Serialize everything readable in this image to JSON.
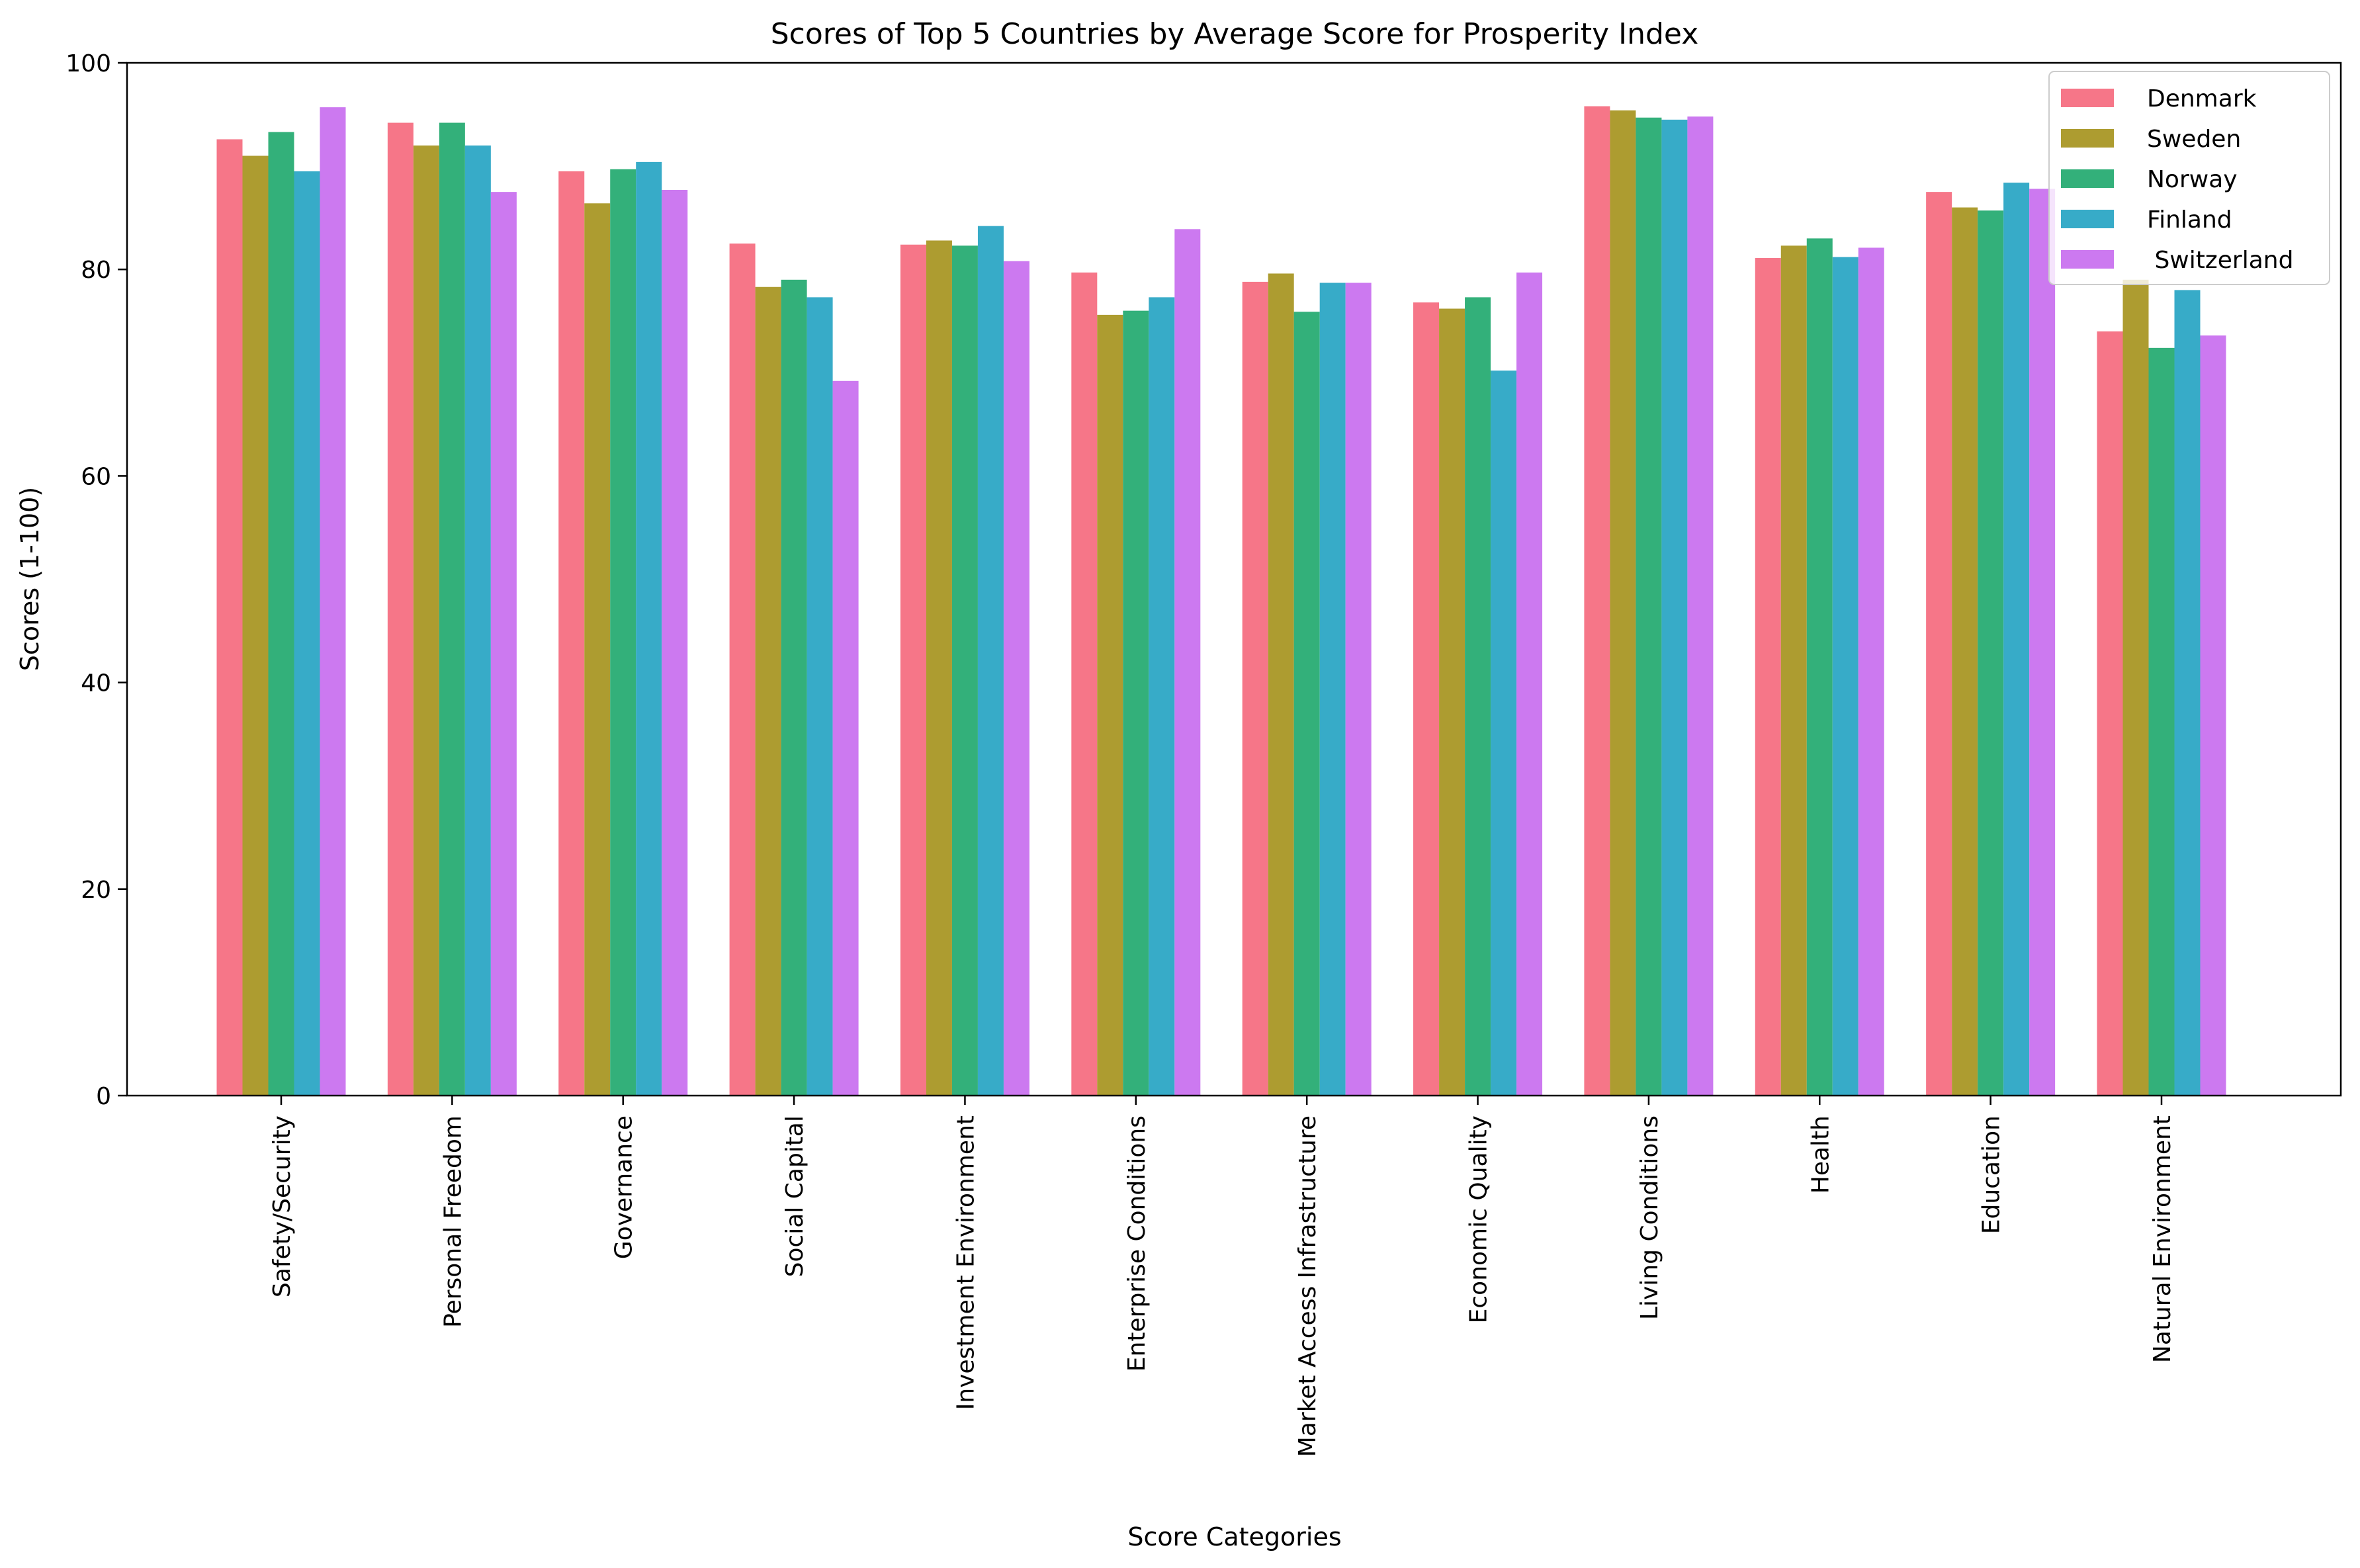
{
  "chart_data": {
    "type": "bar",
    "title": "Scores of Top 5 Countries by Average Score for Prosperity Index",
    "xlabel": "Score Categories",
    "ylabel": "Scores (1-100)",
    "ylim": [
      0,
      100
    ],
    "yticks": [
      0,
      20,
      40,
      60,
      80,
      100
    ],
    "grid": false,
    "legend_position": "top-right",
    "categories": [
      "Safety/Security",
      "Personal Freedom",
      "Governance",
      "Social Capital",
      "Investment Environment",
      "Enterprise Conditions",
      "Market Access Infrastructure",
      "Economic Quality",
      "Living Conditions",
      "Health",
      "Education",
      "Natural Environment"
    ],
    "series": [
      {
        "name": "Denmark",
        "color": "#f67688",
        "values": [
          92.6,
          94.2,
          89.5,
          82.5,
          82.4,
          79.7,
          78.8,
          76.8,
          95.8,
          81.1,
          87.5,
          74.0
        ]
      },
      {
        "name": "Sweden",
        "color": "#ad9c30",
        "values": [
          91.0,
          92.0,
          86.4,
          78.3,
          82.8,
          75.6,
          79.6,
          76.2,
          95.4,
          82.3,
          86.0,
          79.0
        ]
      },
      {
        "name": "Norway",
        "color": "#33b07a",
        "values": [
          93.3,
          94.2,
          89.7,
          79.0,
          82.3,
          76.0,
          75.9,
          77.3,
          94.7,
          83.0,
          85.7,
          72.4
        ]
      },
      {
        "name": "Finland",
        "color": "#37abc8",
        "values": [
          89.5,
          92.0,
          90.4,
          77.3,
          84.2,
          77.3,
          78.7,
          70.2,
          94.5,
          81.2,
          88.4,
          78.0
        ]
      },
      {
        "name": " Switzerland",
        "color": "#cc79f0",
        "values": [
          95.7,
          87.5,
          87.7,
          69.2,
          80.8,
          83.9,
          78.7,
          79.7,
          94.8,
          82.1,
          87.8,
          73.6
        ]
      }
    ]
  }
}
